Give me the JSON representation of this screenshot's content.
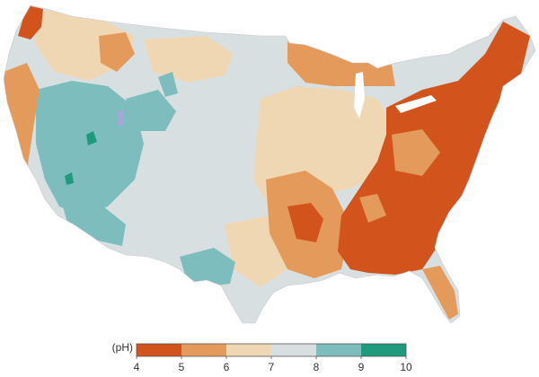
{
  "legend": {
    "unit_label": "(pH)",
    "ticks": [
      "4",
      "5",
      "6",
      "7",
      "8",
      "9",
      "10"
    ],
    "classes": [
      {
        "range": [
          4,
          5
        ],
        "color": "#d2541c"
      },
      {
        "range": [
          5,
          6
        ],
        "color": "#e49a5b"
      },
      {
        "range": [
          6,
          7
        ],
        "color": "#f0d7b4"
      },
      {
        "range": [
          7,
          8
        ],
        "color": "#d8dfe1"
      },
      {
        "range": [
          8,
          9
        ],
        "color": "#7ebdbd"
      },
      {
        "range": [
          9,
          10
        ],
        "color": "#1f9a7c"
      }
    ]
  },
  "colors": {
    "background": "#ffffff",
    "water": "#ffffff",
    "minor_detail": "#a8a6d8"
  }
}
